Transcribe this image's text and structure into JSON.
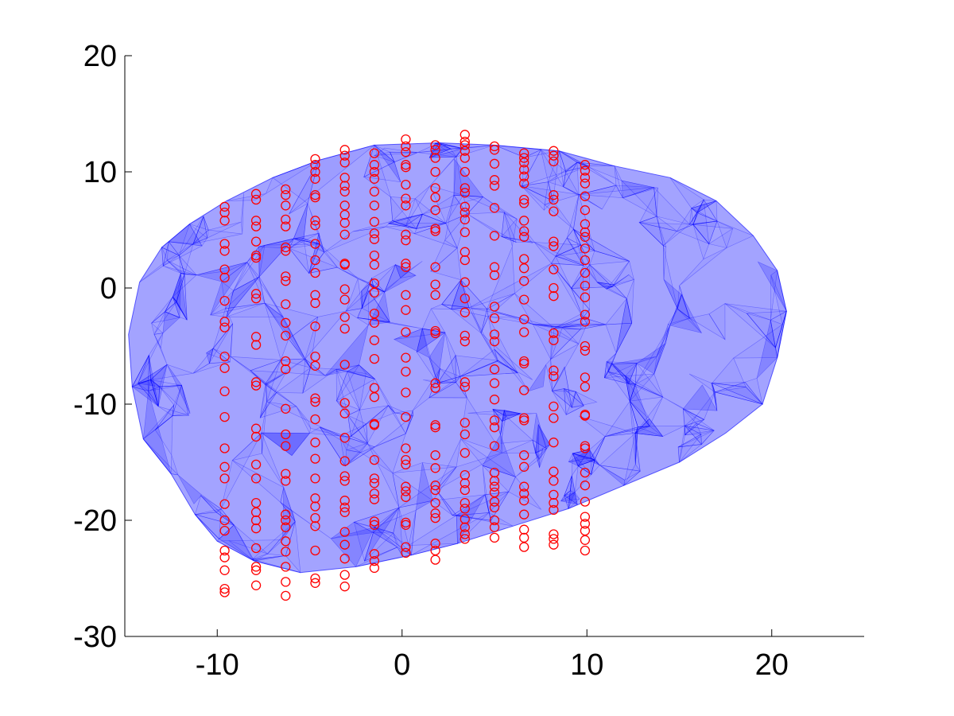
{
  "chart_data": {
    "type": "scatter",
    "title": "",
    "xlabel": "",
    "ylabel": "",
    "xlim": [
      -15,
      25
    ],
    "ylim": [
      -30,
      20
    ],
    "xticks": [
      -10,
      0,
      10,
      20
    ],
    "yticks": [
      20,
      10,
      0,
      -10,
      -20,
      -30
    ],
    "grid": false,
    "legend": "none",
    "surface": {
      "color": "#0000ff",
      "outline": [
        [
          -14.6,
          -8.5
        ],
        [
          -14.0,
          -13.0
        ],
        [
          -12.5,
          -16.0
        ],
        [
          -11.2,
          -19.5
        ],
        [
          -10.0,
          -21.8
        ],
        [
          -8.0,
          -23.5
        ],
        [
          -5.5,
          -24.5
        ],
        [
          -2.5,
          -24.0
        ],
        [
          0.5,
          -23.0
        ],
        [
          3.0,
          -22.0
        ],
        [
          6.0,
          -20.5
        ],
        [
          9.0,
          -19.0
        ],
        [
          12.0,
          -17.0
        ],
        [
          15.0,
          -15.0
        ],
        [
          17.5,
          -12.5
        ],
        [
          19.5,
          -10.0
        ],
        [
          20.3,
          -6.0
        ],
        [
          20.8,
          -2.0
        ],
        [
          20.3,
          1.5
        ],
        [
          19.0,
          4.5
        ],
        [
          17.0,
          7.5
        ],
        [
          14.5,
          9.5
        ],
        [
          11.5,
          10.5
        ],
        [
          8.5,
          11.8
        ],
        [
          5.0,
          12.3
        ],
        [
          2.0,
          12.5
        ],
        [
          -1.5,
          12.3
        ],
        [
          -4.5,
          11.0
        ],
        [
          -7.0,
          9.5
        ],
        [
          -9.5,
          7.5
        ],
        [
          -11.5,
          5.5
        ],
        [
          -13.0,
          3.5
        ],
        [
          -14.2,
          0.5
        ],
        [
          -14.8,
          -4.0
        ]
      ],
      "triangulation_seed": 7,
      "triangle_count": 700
    },
    "series": [
      {
        "marker": "circle",
        "color": "#ff0000",
        "columns": [
          {
            "x": -9.6,
            "y": [
              7,
              6.5,
              5.8,
              3.8,
              3.2,
              1.6,
              0.9,
              -1.1,
              -2.9,
              -3.4,
              -5.9,
              -6.9,
              -8.9,
              -11.1,
              -13.8,
              -15.4,
              -16.4,
              -18.6,
              -20.0,
              -20.9,
              -22.6,
              -23.2,
              -24.3,
              -25.9,
              -26.2
            ]
          },
          {
            "x": -7.9,
            "y": [
              8.1,
              7.6,
              5.8,
              5.3,
              4.0,
              2.8,
              2.6,
              -0.5,
              -0.9,
              -4.2,
              -4.9,
              -8.1,
              -8.4,
              -12.1,
              -12.8,
              -15.2,
              -16.4,
              -18.5,
              -19.3,
              -20.0,
              -20.7,
              -22.4,
              -24.0,
              -24.3,
              -25.6
            ]
          },
          {
            "x": -6.3,
            "y": [
              8.5,
              8.0,
              7.1,
              5.9,
              5.3,
              3.5,
              3.2,
              1.0,
              0.6,
              -1.4,
              -3.0,
              -4.1,
              -6.3,
              -7.0,
              -10.4,
              -12.6,
              -13.6,
              -16.0,
              -16.6,
              -19.5,
              -20.0,
              -20.6,
              -21.8,
              -22.7,
              -24.0,
              -25.3,
              -26.5
            ]
          },
          {
            "x": -4.7,
            "y": [
              11.1,
              10.6,
              10.0,
              9.4,
              8.0,
              7.8,
              5.8,
              5.4,
              3.8,
              2.4,
              1.3,
              -0.6,
              -1.3,
              -3.3,
              -5.9,
              -6.7,
              -9.5,
              -9.8,
              -11.3,
              -13.3,
              -14.7,
              -16.4,
              -18.1,
              -18.8,
              -19.8,
              -20.5,
              -22.6,
              -25.0,
              -25.4
            ]
          },
          {
            "x": -3.1,
            "y": [
              11.9,
              11.4,
              10.8,
              9.5,
              8.8,
              8.3,
              7.1,
              6.3,
              5.6,
              4.6,
              2.1,
              2.0,
              -0.1,
              -1.0,
              -2.5,
              -3.5,
              -6.6,
              -9.9,
              -10.8,
              -12.9,
              -14.9,
              -16.2,
              -16.6,
              -18.3,
              -18.9,
              -19.3,
              -21.0,
              -22.1,
              -23.3,
              -24.7,
              -25.7
            ]
          },
          {
            "x": -1.5,
            "y": [
              11.6,
              10.6,
              10.0,
              9.4,
              8.3,
              7.1,
              5.7,
              4.7,
              4.2,
              2.8,
              2.0,
              0.4,
              -0.4,
              -2.2,
              -3.0,
              -4.5,
              -6.1,
              -8.6,
              -9.4,
              -11.7,
              -11.8,
              -14.8,
              -16.4,
              -16.8,
              -17.7,
              -18.2,
              -20.1,
              -20.4,
              -22.9,
              -23.5,
              -24.1
            ]
          },
          {
            "x": 0.2,
            "y": [
              12.8,
              12.2,
              11.7,
              10.6,
              10.4,
              8.9,
              7.7,
              7.1,
              4.6,
              4.1,
              2.1,
              1.8,
              -0.6,
              -1.9,
              -3.8,
              -6.0,
              -7.2,
              -9.0,
              -11.1,
              -13.8,
              -14.8,
              -15.2,
              -17.1,
              -17.5,
              -18.0,
              -20.2,
              -20.4,
              -22.3,
              -22.8
            ]
          },
          {
            "x": 1.8,
            "y": [
              12.3,
              11.9,
              11.2,
              10.0,
              8.6,
              7.8,
              6.7,
              5.1,
              4.9,
              1.8,
              0.3,
              -0.6,
              -3.7,
              -3.9,
              -8.2,
              -8.6,
              -11.8,
              -12.0,
              -14.4,
              -15.5,
              -17.0,
              -17.4,
              -18.5,
              -19.4,
              -19.8,
              -22.0,
              -22.6,
              -23.4
            ]
          },
          {
            "x": 3.4,
            "y": [
              13.2,
              12.6,
              12.3,
              11.8,
              11.2,
              10.0,
              8.6,
              8.2,
              7.0,
              6.5,
              5.9,
              4.8,
              3.1,
              2.4,
              0.5,
              -0.9,
              -2.1,
              -4.1,
              -4.6,
              -8.1,
              -8.5,
              -11.6,
              -12.6,
              -14.2,
              -16.1,
              -16.8,
              -17.4,
              -18.5,
              -19.0,
              -19.9,
              -20.6,
              -21.2,
              -21.6
            ]
          },
          {
            "x": 5.0,
            "y": [
              12.2,
              11.9,
              10.7,
              9.3,
              8.8,
              6.9,
              4.5,
              1.8,
              1.1,
              -1.6,
              -2.6,
              -4.0,
              -4.6,
              -7.0,
              -8.2,
              -9.6,
              -11.4,
              -12.0,
              -13.6,
              -15.9,
              -16.6,
              -17.1,
              -17.6,
              -18.4,
              -18.9,
              -20.0,
              -20.6,
              -21.5
            ]
          },
          {
            "x": 6.6,
            "y": [
              11.6,
              11.2,
              10.8,
              10.2,
              9.6,
              9.0,
              7.6,
              7.3,
              5.8,
              4.9,
              4.4,
              2.5,
              1.7,
              0.6,
              -1.0,
              -2.7,
              -3.8,
              -6.3,
              -6.5,
              -8.8,
              -11.2,
              -11.4,
              -14.4,
              -15.4,
              -17.1,
              -17.7,
              -18.3,
              -19.5,
              -20.8,
              -21.5,
              -22.3
            ]
          },
          {
            "x": 8.2,
            "y": [
              11.8,
              11.4,
              10.9,
              8.0,
              7.6,
              6.6,
              4.0,
              3.6,
              1.6,
              0.0,
              -0.7,
              -3.9,
              -4.5,
              -7.1,
              -7.6,
              -10.2,
              -11.2,
              -13.3,
              -15.8,
              -16.6,
              -17.8,
              -18.5,
              -19.1,
              -21.2,
              -21.6,
              -22.1
            ]
          },
          {
            "x": 9.9,
            "y": [
              10.6,
              10.1,
              9.5,
              9.0,
              7.9,
              6.7,
              5.5,
              4.8,
              4.4,
              3.4,
              2.4,
              1.3,
              0.2,
              -0.8,
              -2.3,
              -2.9,
              -5.0,
              -5.4,
              -7.7,
              -8.5,
              -10.9,
              -11.0,
              -13.6,
              -13.8,
              -15.9,
              -17.0,
              -18.4,
              -19.7,
              -20.3,
              -20.9,
              -21.7,
              -22.6
            ]
          }
        ]
      }
    ]
  }
}
